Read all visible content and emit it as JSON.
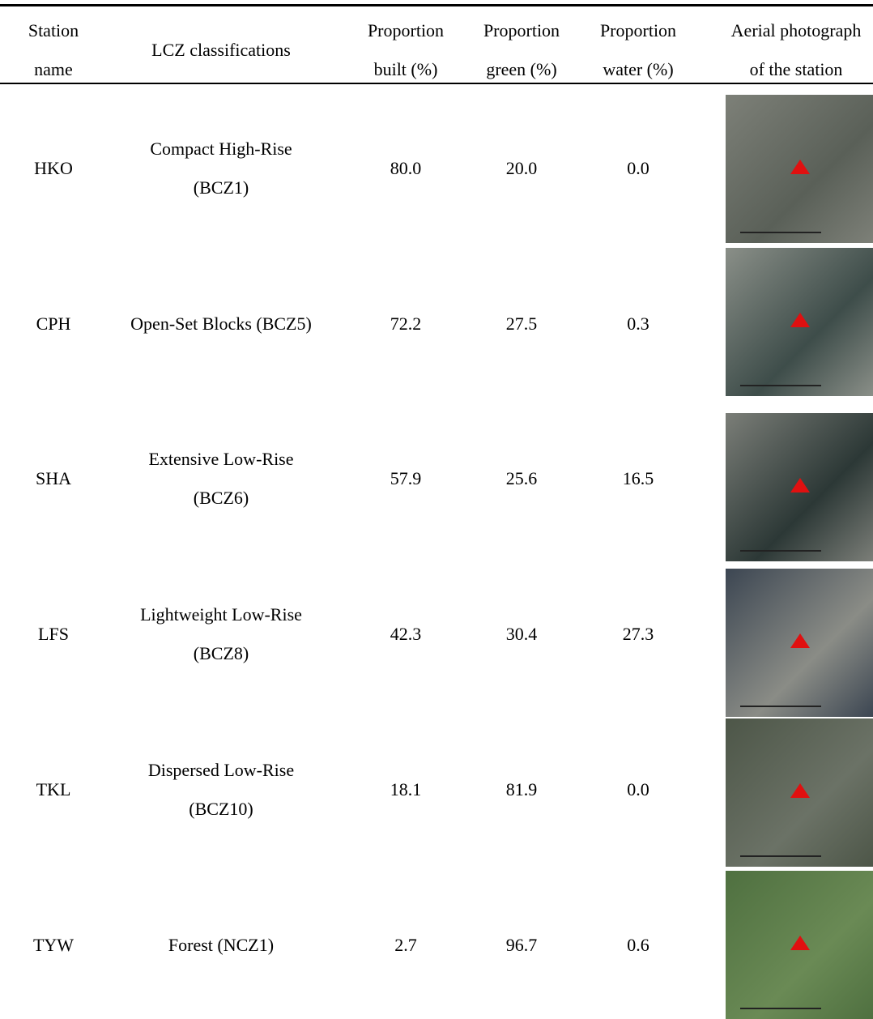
{
  "table": {
    "header": [
      [
        "Station",
        "name"
      ],
      [
        "LCZ classifications"
      ],
      [
        "Proportion",
        "built (%)"
      ],
      [
        "Proportion",
        "green (%)"
      ],
      [
        "Proportion",
        "water (%)"
      ],
      [
        "Aerial photograph",
        "of the station"
      ]
    ],
    "rows": [
      [
        [
          "HKO"
        ],
        [
          "Compact High-Rise",
          "(BCZ1)"
        ],
        [
          "80.0"
        ],
        [
          "20.0"
        ],
        [
          "0.0"
        ]
      ],
      [
        [
          "CPH"
        ],
        [
          "Open-Set Blocks (BCZ5)"
        ],
        [
          "72.2"
        ],
        [
          "27.5"
        ],
        [
          "0.3"
        ]
      ],
      [
        [
          "SHA"
        ],
        [
          "Extensive Low-Rise",
          "(BCZ6)"
        ],
        [
          "57.9"
        ],
        [
          "25.6"
        ],
        [
          "16.5"
        ]
      ],
      [
        [
          "LFS"
        ],
        [
          "Lightweight Low-Rise",
          "(BCZ8)"
        ],
        [
          "42.3"
        ],
        [
          "30.4"
        ],
        [
          "27.3"
        ]
      ],
      [
        [
          "TKL"
        ],
        [
          "Dispersed Low-Rise",
          "(BCZ10)"
        ],
        [
          "18.1"
        ],
        [
          "81.9"
        ],
        [
          "0.0"
        ]
      ],
      [
        [
          "TYW"
        ],
        [
          "Forest (NCZ1)"
        ],
        [
          "2.7"
        ],
        [
          "96.7"
        ],
        [
          "0.6"
        ]
      ]
    ]
  }
}
